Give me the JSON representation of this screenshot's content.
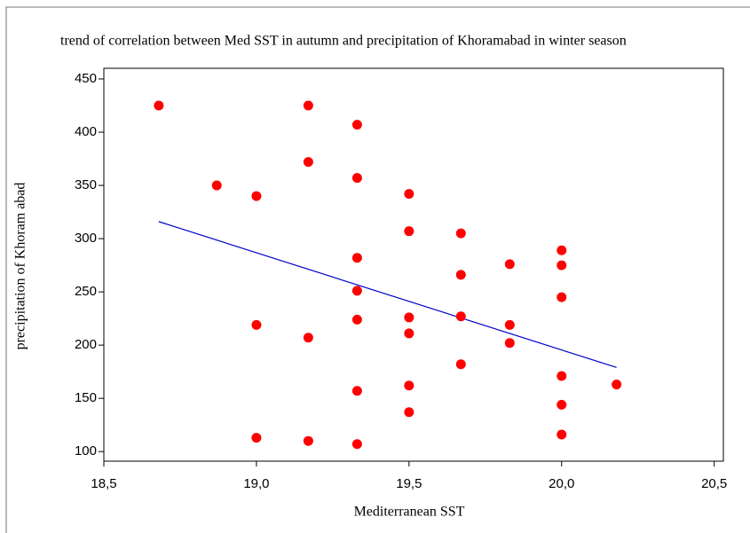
{
  "chart_data": {
    "type": "scatter",
    "title": "trend of correlation between Med SST in autumn  and precipitation of Khoramabad in winter season",
    "x_label": "Mediterranean SST",
    "y_label": "precipitation of Khoram abad",
    "color": "#ff0000",
    "x": [
      18.68,
      18.87,
      19.0,
      19.0,
      19.0,
      19.17,
      19.17,
      19.17,
      19.17,
      19.33,
      19.33,
      19.33,
      19.33,
      19.33,
      19.33,
      19.33,
      19.5,
      19.5,
      19.5,
      19.5,
      19.5,
      19.5,
      19.67,
      19.67,
      19.67,
      19.67,
      19.83,
      19.83,
      19.83,
      20.0,
      20.0,
      20.0,
      20.0,
      20.0,
      20.0,
      20.18
    ],
    "values": [
      425,
      350,
      340,
      219,
      113,
      425,
      372,
      207,
      110,
      407,
      357,
      282,
      251,
      224,
      157,
      107,
      342,
      307,
      226,
      211,
      162,
      137,
      305,
      266,
      227,
      182,
      276,
      219,
      202,
      289,
      275,
      245,
      171,
      144,
      116,
      163
    ],
    "fit_line": {
      "x": [
        18.68,
        20.18
      ],
      "values": [
        316,
        179
      ],
      "color": "#0000cc"
    },
    "xlim": [
      18.5,
      20.53
    ],
    "ylim": [
      91,
      460
    ],
    "xticks": [
      {
        "value": 18.5,
        "label": "18,5"
      },
      {
        "value": 19.0,
        "label": "19,0"
      },
      {
        "value": 19.5,
        "label": "19,5"
      },
      {
        "value": 20.0,
        "label": "20,0"
      },
      {
        "value": 20.5,
        "label": "20,5"
      }
    ],
    "yticks": [
      100,
      150,
      200,
      250,
      300,
      350,
      400,
      450
    ]
  }
}
